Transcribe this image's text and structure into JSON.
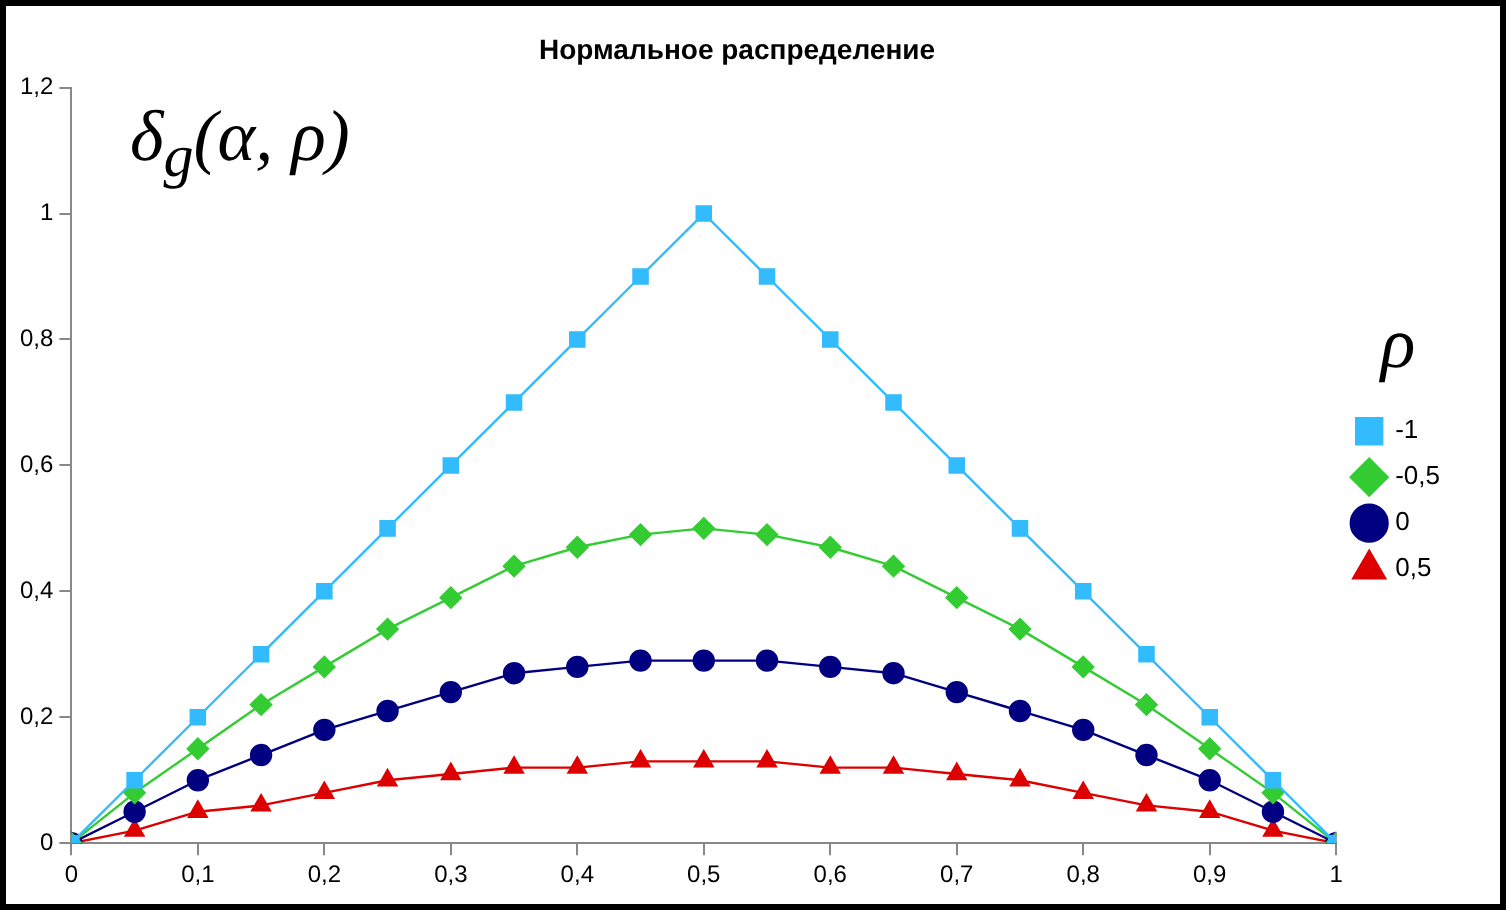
{
  "chart_data": {
    "type": "line",
    "title": "Нормальное распределение",
    "ylabel": "δ$_{g}$(α, ρ)",
    "legend_title": "ρ",
    "legend": "right",
    "grid": false,
    "x": [
      0,
      0.05,
      0.1,
      0.15,
      0.2,
      0.25,
      0.3,
      0.35,
      0.4,
      0.45,
      0.5,
      0.55,
      0.6,
      0.65,
      0.7,
      0.75,
      0.8,
      0.85,
      0.9,
      0.95,
      1
    ],
    "xlim": [
      0,
      1
    ],
    "xticks": [
      0,
      {
        "value": 0.1,
        "label": "0,1"
      },
      {
        "value": 0.2,
        "label": "0,2"
      },
      {
        "value": 0.3,
        "label": "0,3"
      },
      {
        "value": 0.4,
        "label": "0,4"
      },
      {
        "value": 0.5,
        "label": "0,5"
      },
      {
        "value": 0.6,
        "label": "0,6"
      },
      {
        "value": 0.7,
        "label": "0,7"
      },
      {
        "value": 0.8,
        "label": "0,8"
      },
      {
        "value": 0.9,
        "label": "0,9"
      },
      1
    ],
    "ylim": [
      0,
      1.2
    ],
    "yticks": [
      0,
      {
        "value": 0.2,
        "label": "0,2"
      },
      {
        "value": 0.4,
        "label": "0,4"
      },
      {
        "value": 0.6,
        "label": "0,6"
      },
      {
        "value": 0.8,
        "label": "0,8"
      },
      1,
      {
        "value": 1.2,
        "label": "1,2"
      }
    ],
    "series": [
      {
        "name": "-1",
        "color": "#33bbff",
        "marker": "square",
        "values": [
          0,
          0.1,
          0.2,
          0.3,
          0.4,
          0.5,
          0.6,
          0.7,
          0.8,
          0.9,
          1,
          0.9,
          0.8,
          0.7,
          0.6,
          0.5,
          0.4,
          0.3,
          0.2,
          0.1,
          0
        ]
      },
      {
        "name": "-0,5",
        "color": "#33cc33",
        "marker": "diamond",
        "values": [
          0,
          0.08,
          0.15,
          0.22,
          0.28,
          0.34,
          0.39,
          0.44,
          0.47,
          0.49,
          0.5,
          0.49,
          0.47,
          0.44,
          0.39,
          0.34,
          0.28,
          0.22,
          0.15,
          0.08,
          0
        ]
      },
      {
        "name": "0",
        "color": "#000080",
        "marker": "circle",
        "values": [
          0,
          0.05,
          0.1,
          0.14,
          0.18,
          0.21,
          0.24,
          0.27,
          0.28,
          0.29,
          0.29,
          0.29,
          0.28,
          0.27,
          0.24,
          0.21,
          0.18,
          0.14,
          0.1,
          0.05,
          0
        ]
      },
      {
        "name": "0,5",
        "color": "#dd0000",
        "marker": "triangle",
        "values": [
          0,
          0.02,
          0.05,
          0.06,
          0.08,
          0.1,
          0.11,
          0.12,
          0.12,
          0.13,
          0.13,
          0.13,
          0.12,
          0.12,
          0.11,
          0.1,
          0.08,
          0.06,
          0.05,
          0.02,
          0
        ]
      }
    ]
  }
}
